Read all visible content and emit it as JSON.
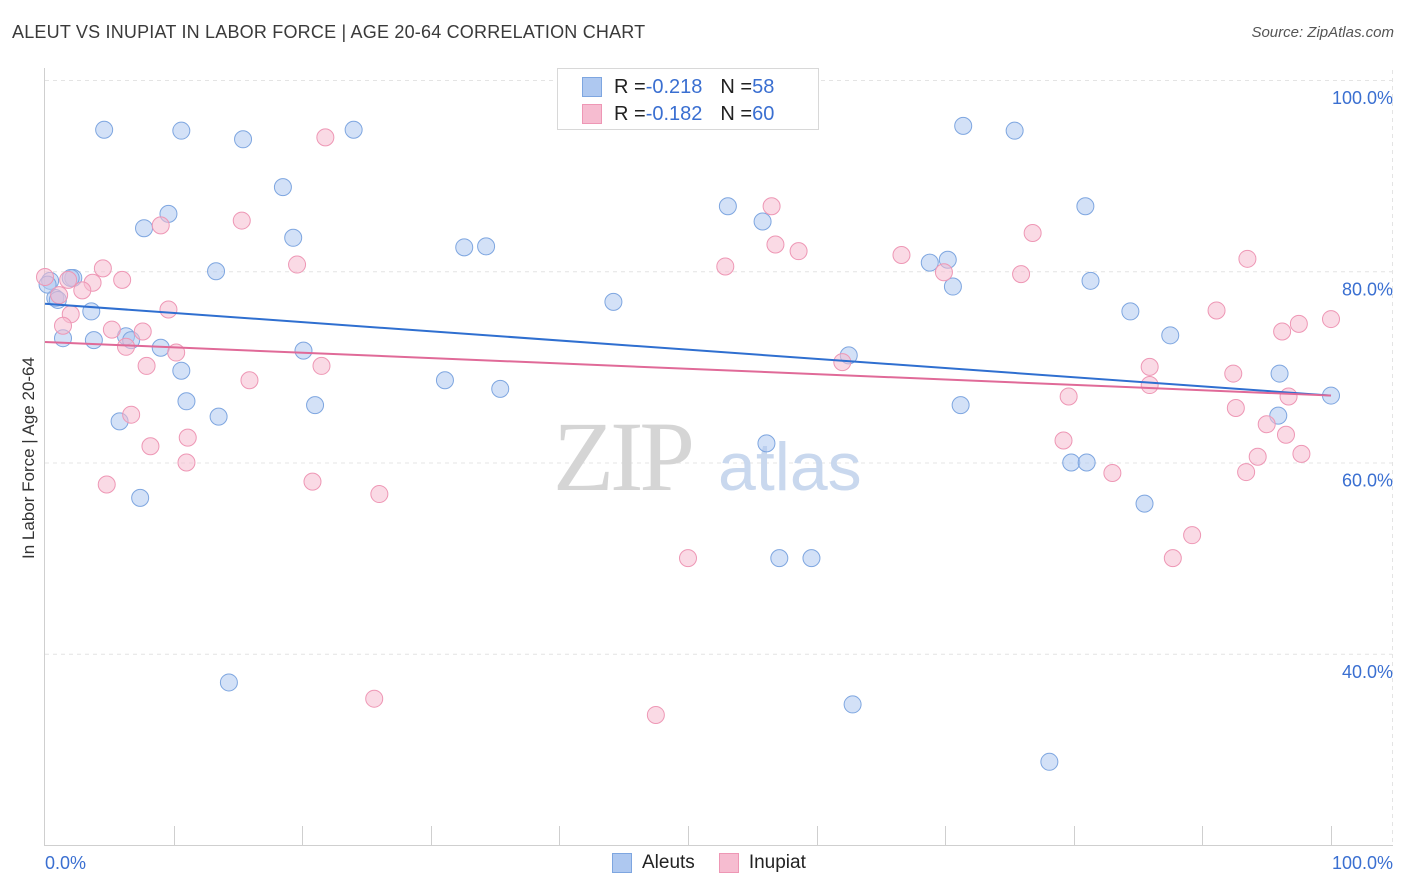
{
  "header": {
    "title": "ALEUT VS INUPIAT IN LABOR FORCE | AGE 20-64 CORRELATION CHART",
    "source": "Source: ZipAtlas.com"
  },
  "watermark": {
    "zip": "ZIP",
    "atlas": "atlas"
  },
  "colors": {
    "aleuts_fill": "#aec8f0",
    "aleuts_stroke": "#7ea6e0",
    "aleuts_line": "#2f6fd0",
    "inupiat_fill": "#f6bcd0",
    "inupiat_stroke": "#ee97b5",
    "inupiat_line": "#e06a98",
    "tick_text": "#3a6fd1",
    "grid": "#e4e4e4"
  },
  "legend": {
    "aleuts": {
      "r_label": "R = ",
      "r_value": "-0.218",
      "n_label": "N = ",
      "n_value": "58"
    },
    "inupiat": {
      "r_label": "R = ",
      "r_value": "-0.182",
      "n_label": "N = ",
      "n_value": "60"
    }
  },
  "chart_data": {
    "type": "scatter",
    "title": "ALEUT VS INUPIAT IN LABOR FORCE | AGE 20-64 CORRELATION CHART",
    "xlabel": "",
    "ylabel": "In Labor Force | Age 20-64",
    "xlim": [
      0,
      100
    ],
    "ylim": [
      20,
      100
    ],
    "x_tick_labels": [
      {
        "value": 0,
        "label": "0.0%"
      },
      {
        "value": 100,
        "label": "100.0%"
      }
    ],
    "y_tick_labels": [
      {
        "value": 100,
        "label": "100.0%"
      },
      {
        "value": 80,
        "label": "80.0%"
      },
      {
        "value": 60,
        "label": "60.0%"
      },
      {
        "value": 40,
        "label": "40.0%"
      }
    ],
    "grid": true,
    "legend_position": "bottom-center",
    "series": [
      {
        "name": "Aleuts",
        "r": -0.218,
        "n": 58,
        "trend": {
          "x": [
            0,
            100
          ],
          "y": [
            76.6,
            67.0
          ]
        },
        "points": [
          [
            4.6,
            94.8
          ],
          [
            10.6,
            94.7
          ],
          [
            15.4,
            93.8
          ],
          [
            24.0,
            94.8
          ],
          [
            71.4,
            95.2
          ],
          [
            75.4,
            94.7
          ],
          [
            18.5,
            88.8
          ],
          [
            53.1,
            86.8
          ],
          [
            80.9,
            86.8
          ],
          [
            9.6,
            86.0
          ],
          [
            7.7,
            84.5
          ],
          [
            19.3,
            83.5
          ],
          [
            55.8,
            85.2
          ],
          [
            32.6,
            82.5
          ],
          [
            34.3,
            82.6
          ],
          [
            68.8,
            80.9
          ],
          [
            70.2,
            81.2
          ],
          [
            2.2,
            79.3
          ],
          [
            13.3,
            80.0
          ],
          [
            0.4,
            79.0
          ],
          [
            70.6,
            78.4
          ],
          [
            81.3,
            79.0
          ],
          [
            0.8,
            77.2
          ],
          [
            44.2,
            76.8
          ],
          [
            3.6,
            75.8
          ],
          [
            84.4,
            75.8
          ],
          [
            87.5,
            73.3
          ],
          [
            1.4,
            73.0
          ],
          [
            3.8,
            72.8
          ],
          [
            6.3,
            73.2
          ],
          [
            6.7,
            72.8
          ],
          [
            9.0,
            72.0
          ],
          [
            20.1,
            71.7
          ],
          [
            62.5,
            71.2
          ],
          [
            10.6,
            69.6
          ],
          [
            96.0,
            69.3
          ],
          [
            31.1,
            68.6
          ],
          [
            35.4,
            67.7
          ],
          [
            11.0,
            66.4
          ],
          [
            21.0,
            66.0
          ],
          [
            71.2,
            66.0
          ],
          [
            100.0,
            67.0
          ],
          [
            13.5,
            64.8
          ],
          [
            95.9,
            64.9
          ],
          [
            5.8,
            64.3
          ],
          [
            56.1,
            62.0
          ],
          [
            79.8,
            60.0
          ],
          [
            81.0,
            60.0
          ],
          [
            7.4,
            56.3
          ],
          [
            85.5,
            55.7
          ],
          [
            57.1,
            50.0
          ],
          [
            59.6,
            50.0
          ],
          [
            14.3,
            37.0
          ],
          [
            62.8,
            34.7
          ],
          [
            78.1,
            28.7
          ],
          [
            0.2,
            78.6
          ],
          [
            2.0,
            79.3
          ],
          [
            1.0,
            77.0
          ]
        ]
      },
      {
        "name": "Inupiat",
        "r": -0.182,
        "n": 60,
        "trend": {
          "x": [
            0,
            100
          ],
          "y": [
            72.6,
            67.0
          ]
        },
        "points": [
          [
            21.8,
            94.0
          ],
          [
            56.5,
            86.8
          ],
          [
            15.3,
            85.3
          ],
          [
            9.0,
            84.8
          ],
          [
            76.8,
            84.0
          ],
          [
            56.8,
            82.8
          ],
          [
            58.6,
            82.1
          ],
          [
            93.5,
            81.3
          ],
          [
            66.6,
            81.7
          ],
          [
            19.6,
            80.7
          ],
          [
            52.9,
            80.5
          ],
          [
            4.5,
            80.3
          ],
          [
            69.9,
            79.9
          ],
          [
            75.9,
            79.7
          ],
          [
            1.8,
            79.1
          ],
          [
            6.0,
            79.1
          ],
          [
            3.7,
            78.8
          ],
          [
            2.9,
            78.0
          ],
          [
            0.0,
            79.4
          ],
          [
            1.1,
            77.5
          ],
          [
            9.6,
            76.0
          ],
          [
            91.1,
            75.9
          ],
          [
            2.0,
            75.5
          ],
          [
            100.0,
            75.0
          ],
          [
            97.5,
            74.5
          ],
          [
            1.4,
            74.3
          ],
          [
            96.2,
            73.7
          ],
          [
            5.2,
            73.9
          ],
          [
            7.6,
            73.7
          ],
          [
            6.3,
            72.1
          ],
          [
            10.2,
            71.5
          ],
          [
            21.5,
            70.1
          ],
          [
            7.9,
            70.1
          ],
          [
            85.9,
            70.0
          ],
          [
            92.4,
            69.3
          ],
          [
            15.9,
            68.6
          ],
          [
            85.9,
            68.1
          ],
          [
            79.6,
            66.9
          ],
          [
            96.7,
            66.9
          ],
          [
            92.6,
            65.7
          ],
          [
            6.7,
            65.0
          ],
          [
            95.0,
            64.0
          ],
          [
            96.5,
            62.9
          ],
          [
            11.1,
            62.6
          ],
          [
            79.2,
            62.3
          ],
          [
            8.2,
            61.7
          ],
          [
            97.7,
            60.9
          ],
          [
            94.3,
            60.6
          ],
          [
            11.0,
            60.0
          ],
          [
            83.0,
            58.9
          ],
          [
            93.4,
            59.0
          ],
          [
            20.8,
            58.0
          ],
          [
            4.8,
            57.7
          ],
          [
            26.0,
            56.7
          ],
          [
            89.2,
            52.4
          ],
          [
            50.0,
            50.0
          ],
          [
            87.7,
            50.0
          ],
          [
            25.6,
            35.3
          ],
          [
            47.5,
            33.6
          ],
          [
            62.0,
            70.5
          ]
        ]
      }
    ]
  }
}
